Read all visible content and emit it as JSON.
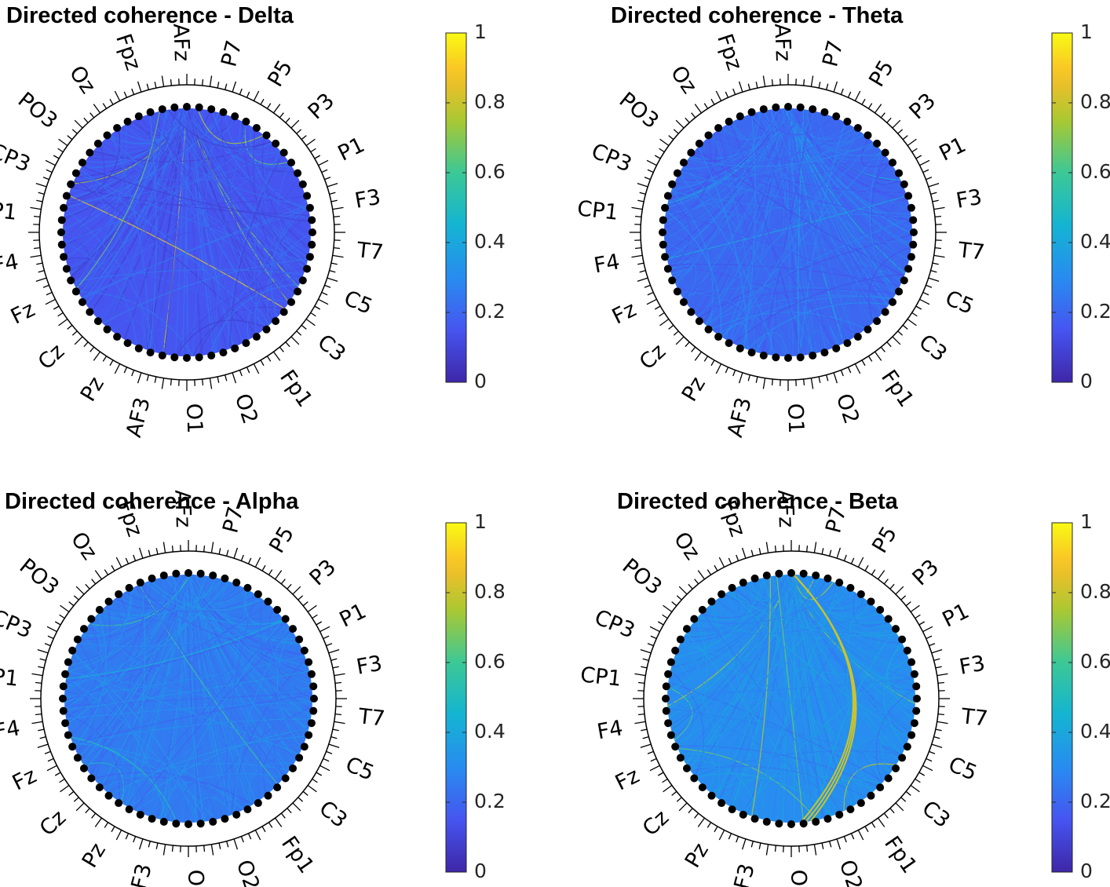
{
  "figure": {
    "panels": [
      {
        "title": "Directed coherence - Delta",
        "band": "Delta"
      },
      {
        "title": "Directed coherence - Theta",
        "band": "Theta"
      },
      {
        "title": "Directed coherence - Alpha",
        "band": "Alpha"
      },
      {
        "title": "Directed coherence - Beta",
        "band": "Beta"
      }
    ],
    "colorbar_ticks": [
      "0",
      "0.2",
      "0.4",
      "0.6",
      "0.8",
      "1"
    ]
  },
  "chart_data": [
    {
      "type": "other",
      "title": "Directed coherence - Delta",
      "colormap": "parula",
      "clim": [
        0,
        1
      ],
      "colorbar_ticks": [
        0,
        0.2,
        0.4,
        0.6,
        0.8,
        1
      ],
      "typical_value": 0.15,
      "max_value": 0.9
    },
    {
      "type": "other",
      "title": "Directed coherence - Theta",
      "colormap": "parula",
      "clim": [
        0,
        1
      ],
      "colorbar_ticks": [
        0,
        0.2,
        0.4,
        0.6,
        0.8,
        1
      ],
      "typical_value": 0.2,
      "max_value": 0.5
    },
    {
      "type": "other",
      "title": "Directed coherence - Alpha",
      "colormap": "parula",
      "clim": [
        0,
        1
      ],
      "colorbar_ticks": [
        0,
        0.2,
        0.4,
        0.6,
        0.8,
        1
      ],
      "typical_value": 0.25,
      "max_value": 0.6
    },
    {
      "type": "other",
      "title": "Directed coherence - Beta",
      "colormap": "parula",
      "clim": [
        0,
        1
      ],
      "colorbar_ticks": [
        0,
        0.2,
        0.4,
        0.6,
        0.8,
        1
      ],
      "typical_value": 0.3,
      "max_value": 0.8
    }
  ],
  "channel_labels_visible": [
    "P7",
    "P5",
    "P3",
    "P1",
    "F3",
    "T7",
    "C5",
    "C3",
    "Fp1",
    "O2",
    "O1",
    "AF3",
    "Pz",
    "Cz",
    "Fz",
    "F4",
    "CP1",
    "CP3",
    "PO3",
    "Oz",
    "Fpz",
    "AFz"
  ]
}
